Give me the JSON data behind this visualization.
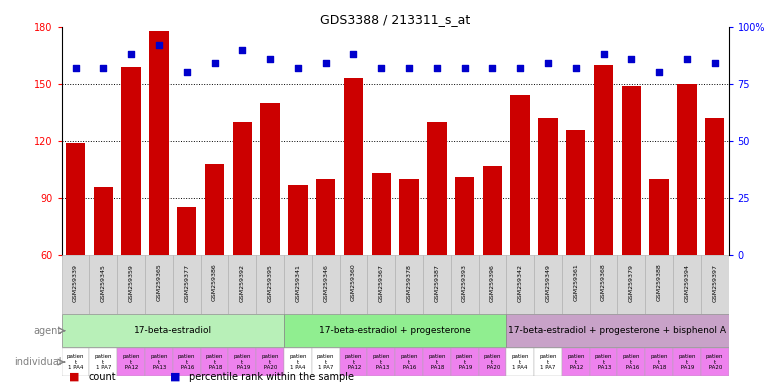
{
  "title": "GDS3388 / 213311_s_at",
  "gsm_labels": [
    "GSM259339",
    "GSM259345",
    "GSM259359",
    "GSM259365",
    "GSM259377",
    "GSM259386",
    "GSM259392",
    "GSM259395",
    "GSM259341",
    "GSM259346",
    "GSM259360",
    "GSM259367",
    "GSM259378",
    "GSM259387",
    "GSM259393",
    "GSM259396",
    "GSM259342",
    "GSM259349",
    "GSM259361",
    "GSM259368",
    "GSM259379",
    "GSM259388",
    "GSM259394",
    "GSM259397"
  ],
  "bar_values": [
    119,
    96,
    159,
    178,
    85,
    108,
    130,
    140,
    97,
    100,
    153,
    103,
    100,
    130,
    101,
    107,
    144,
    132,
    126,
    160,
    149,
    100,
    150,
    132
  ],
  "dot_values": [
    82,
    82,
    88,
    92,
    80,
    84,
    90,
    86,
    82,
    84,
    88,
    82,
    82,
    82,
    82,
    82,
    82,
    84,
    82,
    88,
    86,
    80,
    86,
    84
  ],
  "bar_color": "#cc0000",
  "dot_color": "#0000cc",
  "ylim_left": [
    60,
    180
  ],
  "ylim_right": [
    0,
    100
  ],
  "yticks_left": [
    60,
    90,
    120,
    150,
    180
  ],
  "yticks_right": [
    0,
    25,
    50,
    75,
    100
  ],
  "ytick_labels_right": [
    "0",
    "25",
    "50",
    "75",
    "100%"
  ],
  "grid_values": [
    90,
    120,
    150
  ],
  "agent_groups": [
    {
      "label": "17-beta-estradiol",
      "start": 0,
      "end": 8,
      "color": "#b8f0b8"
    },
    {
      "label": "17-beta-estradiol + progesterone",
      "start": 8,
      "end": 16,
      "color": "#90ee90"
    },
    {
      "label": "17-beta-estradiol + progesterone + bisphenol A",
      "start": 16,
      "end": 24,
      "color": "#c8a2c8"
    }
  ],
  "individual_labels_line1": [
    "patien",
    "patien",
    "patien",
    "patien",
    "patien",
    "patien",
    "patien",
    "patien",
    "patien",
    "patien",
    "patien",
    "patien",
    "patien",
    "patien",
    "patien",
    "patien",
    "patien",
    "patien",
    "patien",
    "patien",
    "patien",
    "patien",
    "patien",
    "patien"
  ],
  "individual_labels_line2": [
    "t",
    "t",
    "t",
    "t",
    "t",
    "t",
    "t",
    "t",
    "t",
    "t",
    "t",
    "t",
    "t",
    "t",
    "t",
    "t",
    "t",
    "t",
    "t",
    "t",
    "t",
    "t",
    "t",
    "t"
  ],
  "individual_labels_line3": [
    "1 PA4",
    "1 PA7",
    " PA12",
    " PA13",
    " PA16",
    " PA18",
    " PA19",
    " PA20",
    "1 PA4",
    "1 PA7",
    " PA12",
    " PA13",
    " PA16",
    " PA18",
    " PA19",
    " PA20",
    "1 PA4",
    "1 PA7",
    " PA12",
    " PA13",
    " PA16",
    " PA18",
    " PA19",
    " PA20"
  ],
  "individual_colors": [
    "#ffffff",
    "#ffffff",
    "#ee82ee",
    "#ee82ee",
    "#ee82ee",
    "#ee82ee",
    "#ee82ee",
    "#ee82ee",
    "#ffffff",
    "#ffffff",
    "#ee82ee",
    "#ee82ee",
    "#ee82ee",
    "#ee82ee",
    "#ee82ee",
    "#ee82ee",
    "#ffffff",
    "#ffffff",
    "#ee82ee",
    "#ee82ee",
    "#ee82ee",
    "#ee82ee",
    "#ee82ee",
    "#ee82ee"
  ],
  "xtick_bg_color": "#d8d8d8",
  "legend_count_color": "#cc0000",
  "legend_dot_color": "#0000cc",
  "left_label_color": "#808080"
}
